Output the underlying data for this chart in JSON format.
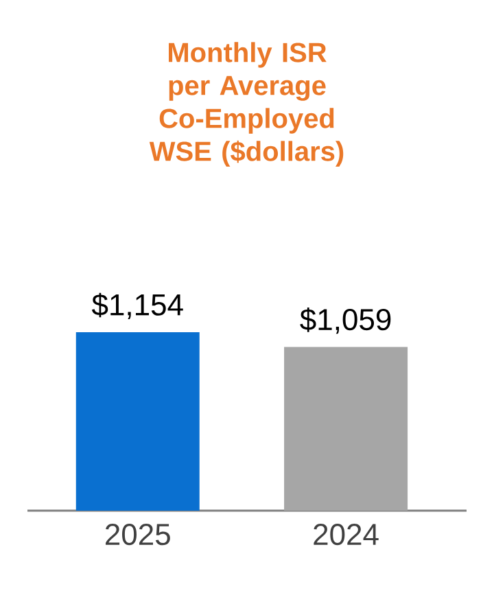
{
  "chart_data": {
    "type": "bar",
    "title": "Monthly ISR per Average Co-Employed WSE ($dollars)",
    "categories": [
      "2025",
      "2024"
    ],
    "values": [
      1154,
      1059
    ],
    "colors": [
      "#0a70d0",
      "#a6a6a6"
    ],
    "value_labels": [
      "$1,154",
      "$1,059"
    ]
  }
}
